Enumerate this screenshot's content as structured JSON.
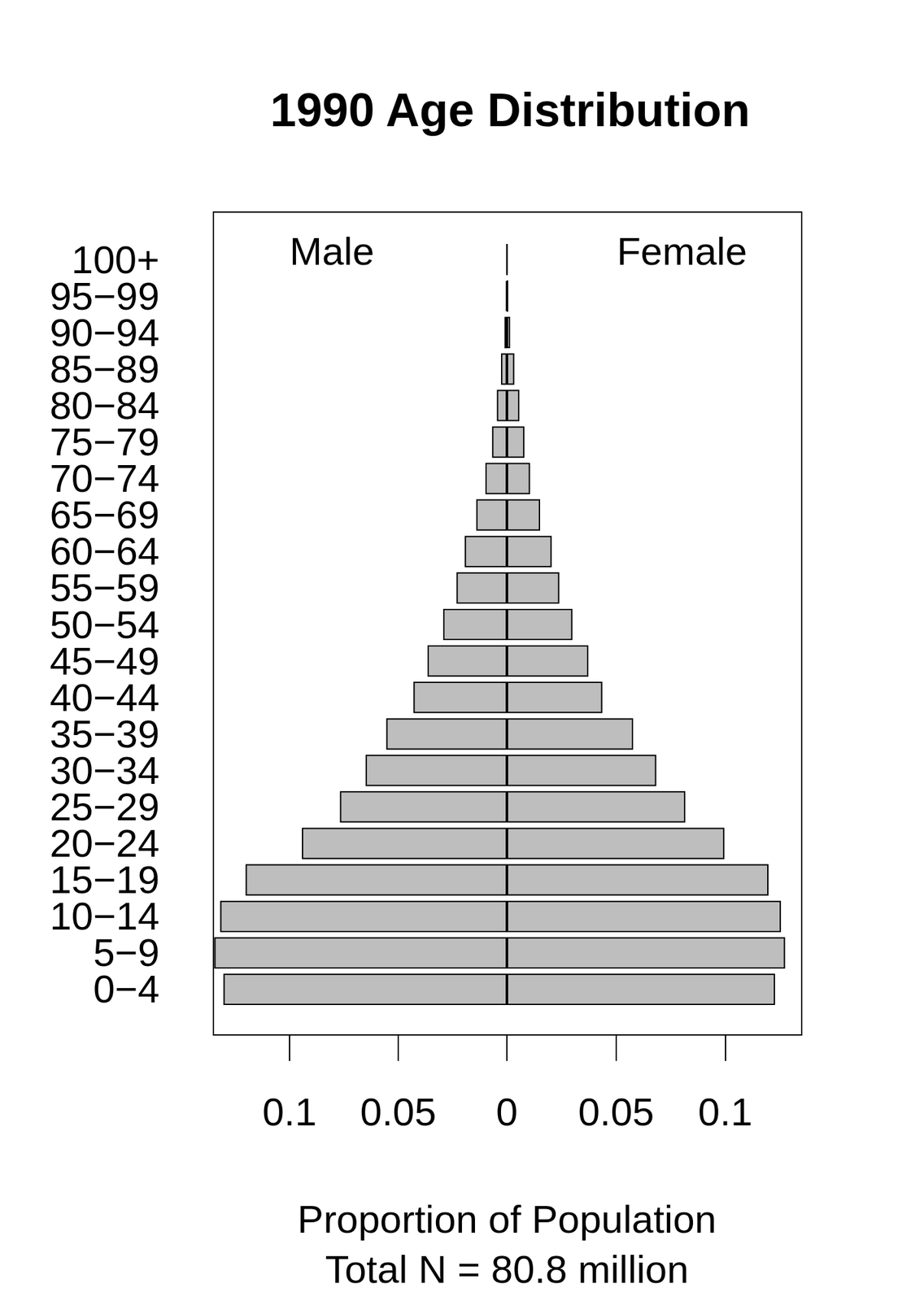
{
  "chart_data": {
    "type": "bar",
    "orientation": "horizontal",
    "title": "1990 Age Distribution",
    "x_label": "Proportion of Population",
    "subtitle": "Total N = 80.8 million",
    "categories": [
      "0−4",
      "5−9",
      "10−14",
      "15−19",
      "20−24",
      "25−29",
      "30−34",
      "35−39",
      "40−44",
      "45−49",
      "50−54",
      "55−59",
      "60−64",
      "65−69",
      "70−74",
      "75−79",
      "80−84",
      "85−89",
      "90−94",
      "95−99",
      "100+"
    ],
    "series": [
      {
        "name": "Male",
        "color": "#bebebe",
        "values": [
          0.1304,
          0.1346,
          0.1319,
          0.1202,
          0.0943,
          0.0768,
          0.065,
          0.0555,
          0.043,
          0.0365,
          0.0293,
          0.0232,
          0.0194,
          0.0141,
          0.0099,
          0.0068,
          0.0046,
          0.0027,
          0.0011,
          0.0004,
          0.0001
        ]
      },
      {
        "name": "Female",
        "color": "#bebebe",
        "values": [
          0.1228,
          0.1274,
          0.1255,
          0.1198,
          0.0996,
          0.0817,
          0.0684,
          0.0578,
          0.0437,
          0.0373,
          0.03,
          0.024,
          0.0205,
          0.0152,
          0.0106,
          0.008,
          0.0057,
          0.0034,
          0.0015,
          0.0006,
          0.0002
        ]
      }
    ],
    "xlim": [
      0,
      0.135
    ],
    "xticks": [
      0,
      0.05,
      0.1
    ],
    "grid": false
  }
}
